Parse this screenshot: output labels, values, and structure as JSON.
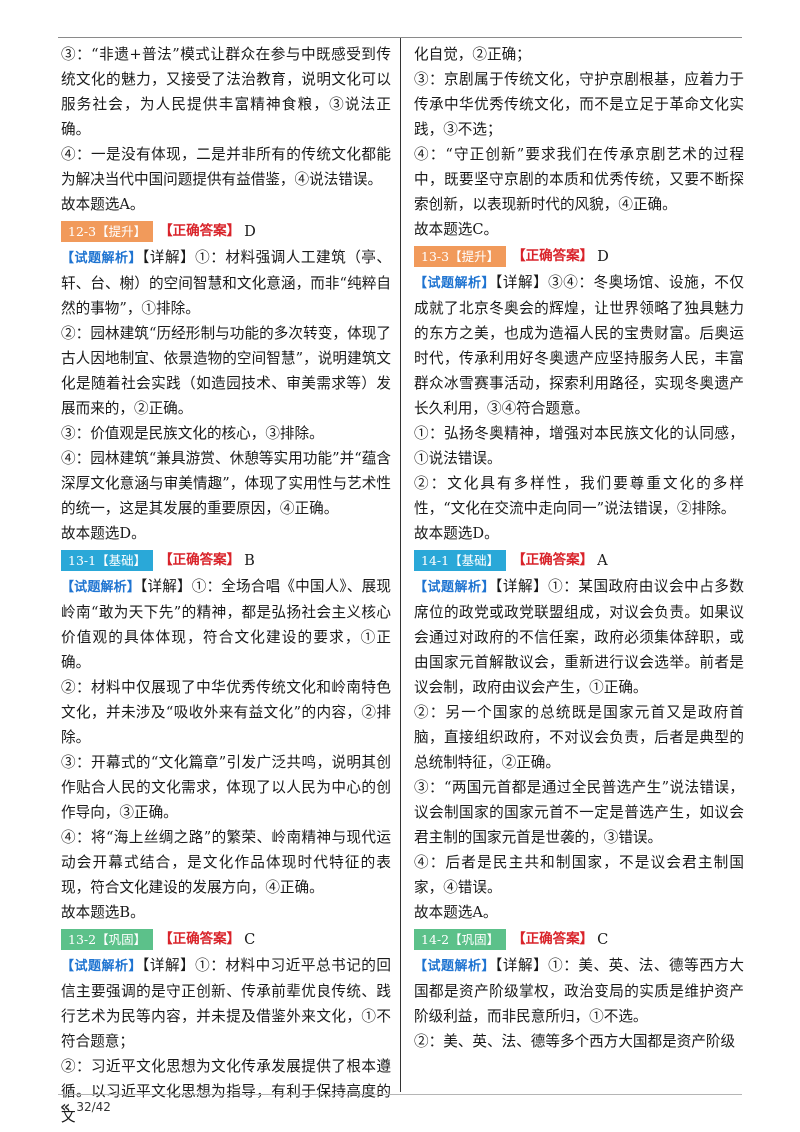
{
  "left_column": [
    {
      "type": "text",
      "text": "③：“非遗+普法”模式让群众在参与中既感受到传统文化的魅力，又接受了法治教育，说明文化可以服务社会，为人民提供丰富精神食粮，③说法正确。"
    },
    {
      "type": "text",
      "text": "④：一是没有体现，二是并非所有的传统文化都能为解决当代中国问题提供有益借鉴，④说法错误。"
    },
    {
      "type": "text",
      "text": "故本题选A。"
    },
    {
      "type": "tagline",
      "tag": "12-3【提升】",
      "tag_color": "tisheng",
      "answer_label": "【正确答案】",
      "answer": "D"
    },
    {
      "type": "analysis",
      "label": "【试题解析】",
      "text": "【详解】①：材料强调人工建筑（亭、轩、台、榭）的空间智慧和文化意涵，而非“纯粹自然的事物”，①排除。"
    },
    {
      "type": "text",
      "text": "②：园林建筑“历经形制与功能的多次转变，体现了古人因地制宜、依景造物的空间智慧”，说明建筑文化是随着社会实践（如造园技术、审美需求等）发展而来的，②正确。"
    },
    {
      "type": "text",
      "text": "③：价值观是民族文化的核心，③排除。"
    },
    {
      "type": "text",
      "text": "④：园林建筑“兼具游赏、休憩等实用功能”并“蕴含深厚文化意涵与审美情趣”，体现了实用性与艺术性的统一，这是其发展的重要原因，④正确。"
    },
    {
      "type": "text",
      "text": "故本题选D。"
    },
    {
      "type": "tagline",
      "tag": "13-1【基础】",
      "tag_color": "jichu",
      "answer_label": "【正确答案】",
      "answer": "B"
    },
    {
      "type": "analysis",
      "label": "【试题解析】",
      "text": "【详解】①：全场合唱《中国人》、展现岭南“敢为天下先”的精神，都是弘扬社会主义核心价值观的具体体现，符合文化建设的要求，①正确。"
    },
    {
      "type": "text",
      "text": "②：材料中仅展现了中华优秀传统文化和岭南特色文化，并未涉及“吸收外来有益文化”的内容，②排除。"
    },
    {
      "type": "text",
      "text": "③：开幕式的“文化篇章”引发广泛共鸣，说明其创作贴合人民的文化需求，体现了以人民为中心的创作导向，③正确。"
    },
    {
      "type": "text",
      "text": "④：将“海上丝绸之路”的繁荣、岭南精神与现代运动会开幕式结合，是文化作品体现时代特征的表现，符合文化建设的发展方向，④正确。"
    },
    {
      "type": "text",
      "text": "故本题选B。"
    },
    {
      "type": "tagline",
      "tag": "13-2【巩固】",
      "tag_color": "gonggu",
      "answer_label": "【正确答案】",
      "answer": "C"
    },
    {
      "type": "analysis",
      "label": "【试题解析】",
      "text": "【详解】①：材料中习近平总书记的回信主要强调的是守正创新、传承前辈优良传统、践行艺术为民等内容，并未提及借鉴外来文化，①不符合题意；"
    },
    {
      "type": "text",
      "text": "②：习近平文化思想为文化传承发展提供了根本遵循。以习近平文化思想为指导，有利于保持高度的文"
    }
  ],
  "right_column": [
    {
      "type": "text",
      "text": "化自觉，②正确；"
    },
    {
      "type": "text",
      "text": "③：京剧属于传统文化，守护京剧根基，应着力于传承中华优秀传统文化，而不是立足于革命文化实践，③不选；"
    },
    {
      "type": "text",
      "text": "④：“守正创新”要求我们在传承京剧艺术的过程中，既要坚守京剧的本质和优秀传统，又要不断探索创新，以表现新时代的风貌，④正确。"
    },
    {
      "type": "text",
      "text": "故本题选C。"
    },
    {
      "type": "tagline",
      "tag": "13-3【提升】",
      "tag_color": "tisheng",
      "answer_label": "【正确答案】",
      "answer": "D"
    },
    {
      "type": "analysis",
      "label": "【试题解析】",
      "text": "【详解】③④：冬奥场馆、设施，不仅成就了北京冬奥会的辉煌，让世界领略了独具魅力的东方之美，也成为造福人民的宝贵财富。后奥运时代，传承利用好冬奥遗产应坚持服务人民，丰富群众冰雪赛事活动，探索利用路径，实现冬奥遗产长久利用，③④符合题意。"
    },
    {
      "type": "text",
      "text": "①：弘扬冬奥精神，增强对本民族文化的认同感，①说法错误。"
    },
    {
      "type": "text",
      "text": "②：文化具有多样性，我们要尊重文化的多样性，“文化在交流中走向同一”说法错误，②排除。"
    },
    {
      "type": "text",
      "text": "故本题选D。"
    },
    {
      "type": "tagline",
      "tag": "14-1【基础】",
      "tag_color": "jichu",
      "answer_label": "【正确答案】",
      "answer": "A"
    },
    {
      "type": "analysis",
      "label": "【试题解析】",
      "text": "【详解】①：某国政府由议会中占多数席位的政党或政党联盟组成，对议会负责。如果议会通过对政府的不信任案，政府必须集体辞职，或由国家元首解散议会，重新进行议会选举。前者是议会制，政府由议会产生，①正确。"
    },
    {
      "type": "text",
      "text": "②：另一个国家的总统既是国家元首又是政府首脑，直接组织政府，不对议会负责，后者是典型的总统制特征，②正确。"
    },
    {
      "type": "text",
      "text": "③：“两国元首都是通过全民普选产生”说法错误，议会制国家的国家元首不一定是普选产生，如议会君主制的国家元首是世袭的，③错误。"
    },
    {
      "type": "text",
      "text": "④：后者是民主共和制国家，不是议会君主制国家，④错误。"
    },
    {
      "type": "text",
      "text": "故本题选A。"
    },
    {
      "type": "tagline",
      "tag": "14-2【巩固】",
      "tag_color": "gonggu",
      "answer_label": "【正确答案】",
      "answer": "C"
    },
    {
      "type": "analysis",
      "label": "【试题解析】",
      "text": "【详解】①：美、英、法、德等西方大国都是资产阶级掌权，政治变局的实质是维护资产阶级利益，而非民意所归，①不选。"
    },
    {
      "type": "text",
      "text": "②：美、英、法、德等多个西方大国都是资产阶级"
    }
  ],
  "footer": {
    "chevron": "«",
    "page": "32/42"
  }
}
